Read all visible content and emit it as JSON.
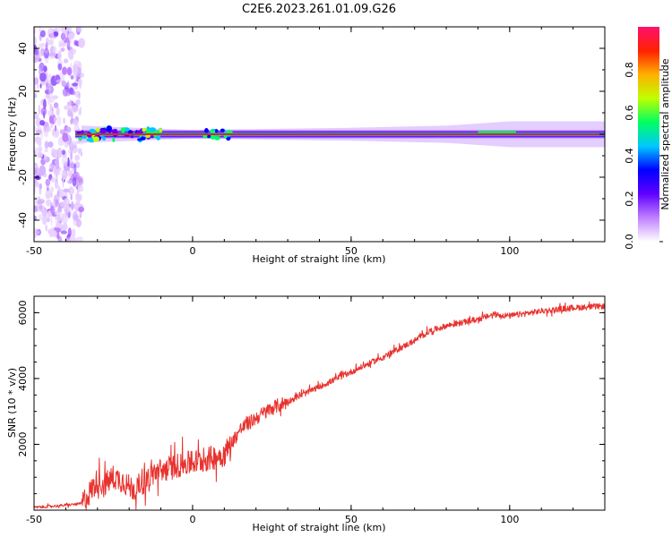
{
  "title": "C2E6.2023.261.01.09.G26",
  "chart_data": [
    {
      "type": "heatmap",
      "xlabel": "Height of straight line (km)",
      "ylabel": "Frequency (Hz)",
      "xlim": [
        -50,
        130
      ],
      "ylim": [
        -50,
        50
      ],
      "xticks": [
        -50,
        0,
        50,
        100
      ],
      "yticks": [
        -40,
        -20,
        0,
        20,
        40
      ],
      "colorbar": {
        "label": "Normalized spectral amplitude",
        "range": [
          0,
          1
        ],
        "ticks": [
          "0.0",
          "0.2",
          "0.4",
          "0.6",
          "0.8"
        ],
        "colors": [
          "#ffffff",
          "#c080ff",
          "#6000ff",
          "#0000ff",
          "#00c8ff",
          "#00ff60",
          "#c0ff00",
          "#ffb000",
          "#ff2000",
          "#ff1070"
        ]
      },
      "peak_frequency_hz": 0
    },
    {
      "type": "line",
      "xlabel": "Height of straight line (km)",
      "ylabel": "SNR (10 * v/v)",
      "xlim": [
        -50,
        130
      ],
      "ylim": [
        0,
        6500
      ],
      "xticks": [
        -50,
        0,
        50,
        100
      ],
      "yticks": [
        2000,
        4000,
        6000
      ],
      "color": "#e8322e",
      "x": [
        -50,
        -40,
        -35,
        -33,
        -30,
        -28,
        -25,
        -22,
        -20,
        -18,
        -15,
        -12,
        -10,
        -5,
        0,
        5,
        8,
        10,
        12,
        15,
        20,
        25,
        30,
        40,
        50,
        60,
        70,
        75,
        80,
        90,
        95,
        100,
        110,
        120,
        130
      ],
      "y": [
        80,
        150,
        200,
        450,
        900,
        750,
        1000,
        900,
        700,
        650,
        900,
        1150,
        1200,
        1350,
        1450,
        1550,
        1650,
        1700,
        2000,
        2450,
        2800,
        3100,
        3300,
        3750,
        4200,
        4650,
        5150,
        5450,
        5600,
        5800,
        5950,
        5900,
        6050,
        6150,
        6200
      ]
    }
  ]
}
